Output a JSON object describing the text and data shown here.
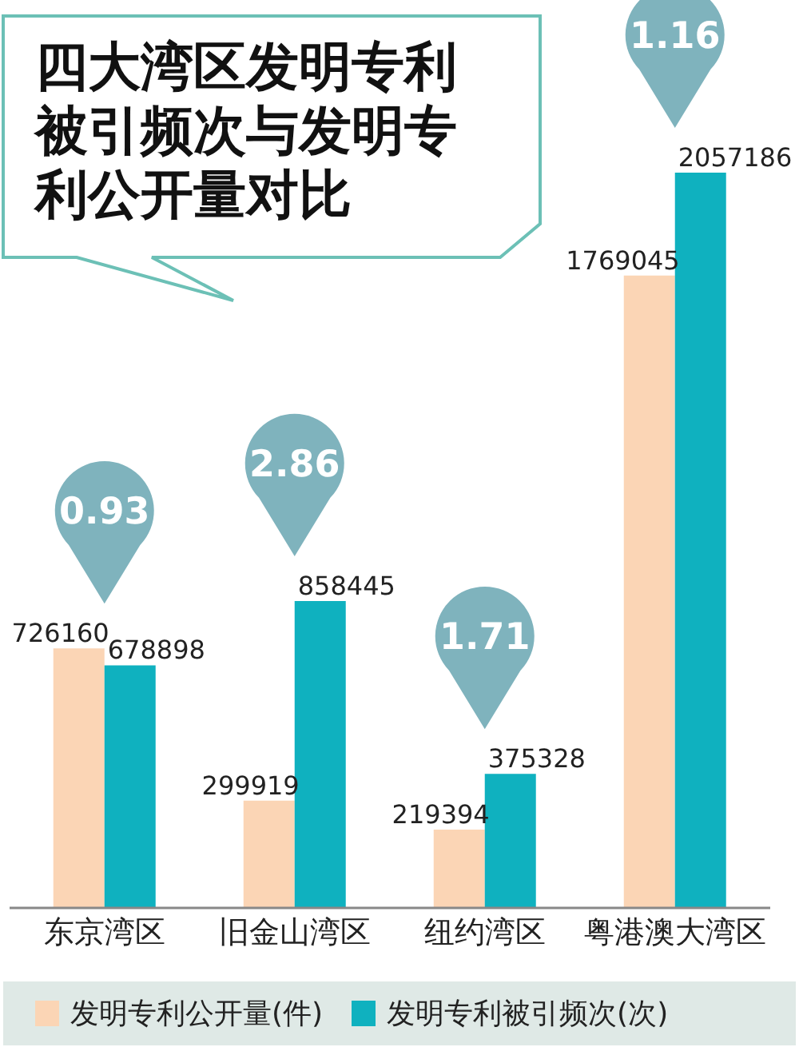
{
  "chart_data": {
    "type": "bar",
    "title": "四大湾区发明专利被引频次与发明专利公开量对比",
    "categories": [
      "东京湾区",
      "旧金山湾区",
      "纽约湾区",
      "粤港澳大湾区"
    ],
    "series": [
      {
        "name": "发明专利公开量(件)",
        "color": "#fbd5b5",
        "values": [
          726160,
          299919,
          219394,
          1769045
        ]
      },
      {
        "name": "发明专利被引频次(次)",
        "color": "#0fb1bf",
        "values": [
          678898,
          858445,
          375328,
          2057186
        ]
      }
    ],
    "annotations": [
      "0.93",
      "2.86",
      "1.71",
      "1.16"
    ],
    "data_labels": true,
    "legend": "bottom"
  }
}
